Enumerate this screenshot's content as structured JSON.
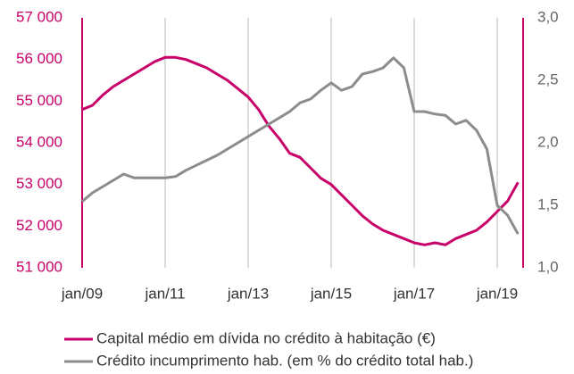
{
  "chart_data": {
    "type": "line",
    "categories": [
      "jan/09",
      null,
      null,
      null,
      null,
      null,
      null,
      null,
      "jan/11",
      null,
      null,
      null,
      null,
      null,
      null,
      null,
      "jan/13",
      null,
      null,
      null,
      null,
      null,
      null,
      null,
      "jan/15",
      null,
      null,
      null,
      null,
      null,
      null,
      null,
      "jan/17",
      null,
      null,
      null,
      null,
      null,
      null,
      null,
      "jan/19",
      null,
      null
    ],
    "series": [
      {
        "name": "Capital médio em dívida no crédito à habitação (€)",
        "color": "#c8006a",
        "axis": "y",
        "values": [
          54800,
          54900,
          55150,
          55350,
          55500,
          55650,
          55800,
          55950,
          56050,
          56050,
          56000,
          55900,
          55800,
          55650,
          55500,
          55300,
          55100,
          54800,
          54400,
          54100,
          53750,
          53650,
          53400,
          53150,
          53000,
          52750,
          52500,
          52250,
          52050,
          51900,
          51800,
          51700,
          51600,
          51550,
          51600,
          51550,
          51700,
          51800,
          51900,
          52100,
          52350,
          52600,
          53050
        ]
      },
      {
        "name": "Crédito incumprimento hab. (em % do crédito total hab.)",
        "color": "#8c8c8c",
        "axis": "y2",
        "values": [
          1.53,
          1.6,
          1.65,
          1.7,
          1.75,
          1.72,
          1.72,
          1.72,
          1.72,
          1.73,
          1.78,
          1.82,
          1.86,
          1.9,
          1.95,
          2.0,
          2.05,
          2.1,
          2.15,
          2.2,
          2.25,
          2.32,
          2.35,
          2.42,
          2.48,
          2.42,
          2.45,
          2.55,
          2.57,
          2.6,
          2.68,
          2.6,
          2.25,
          2.25,
          2.23,
          2.22,
          2.15,
          2.18,
          2.1,
          1.95,
          1.5,
          1.42,
          1.27
        ]
      }
    ],
    "ylim": [
      51000,
      57000
    ],
    "yticks": [
      {
        "value": 51000,
        "label": "51 000"
      },
      {
        "value": 52000,
        "label": "52 000"
      },
      {
        "value": 53000,
        "label": "53 000"
      },
      {
        "value": 54000,
        "label": "54 000"
      },
      {
        "value": 55000,
        "label": "55 000"
      },
      {
        "value": 56000,
        "label": "56 000"
      },
      {
        "value": 57000,
        "label": "57 000"
      }
    ],
    "y2lim": [
      1.0,
      3.0
    ],
    "y2ticks": [
      {
        "value": 1.0,
        "label": "1,0"
      },
      {
        "value": 1.5,
        "label": "1,5"
      },
      {
        "value": 2.0,
        "label": "2,0"
      },
      {
        "value": 2.5,
        "label": "2,5"
      },
      {
        "value": 3.0,
        "label": "3,0"
      }
    ],
    "axis_color": "#c8006a",
    "grid": "x",
    "legend": "bottom"
  }
}
